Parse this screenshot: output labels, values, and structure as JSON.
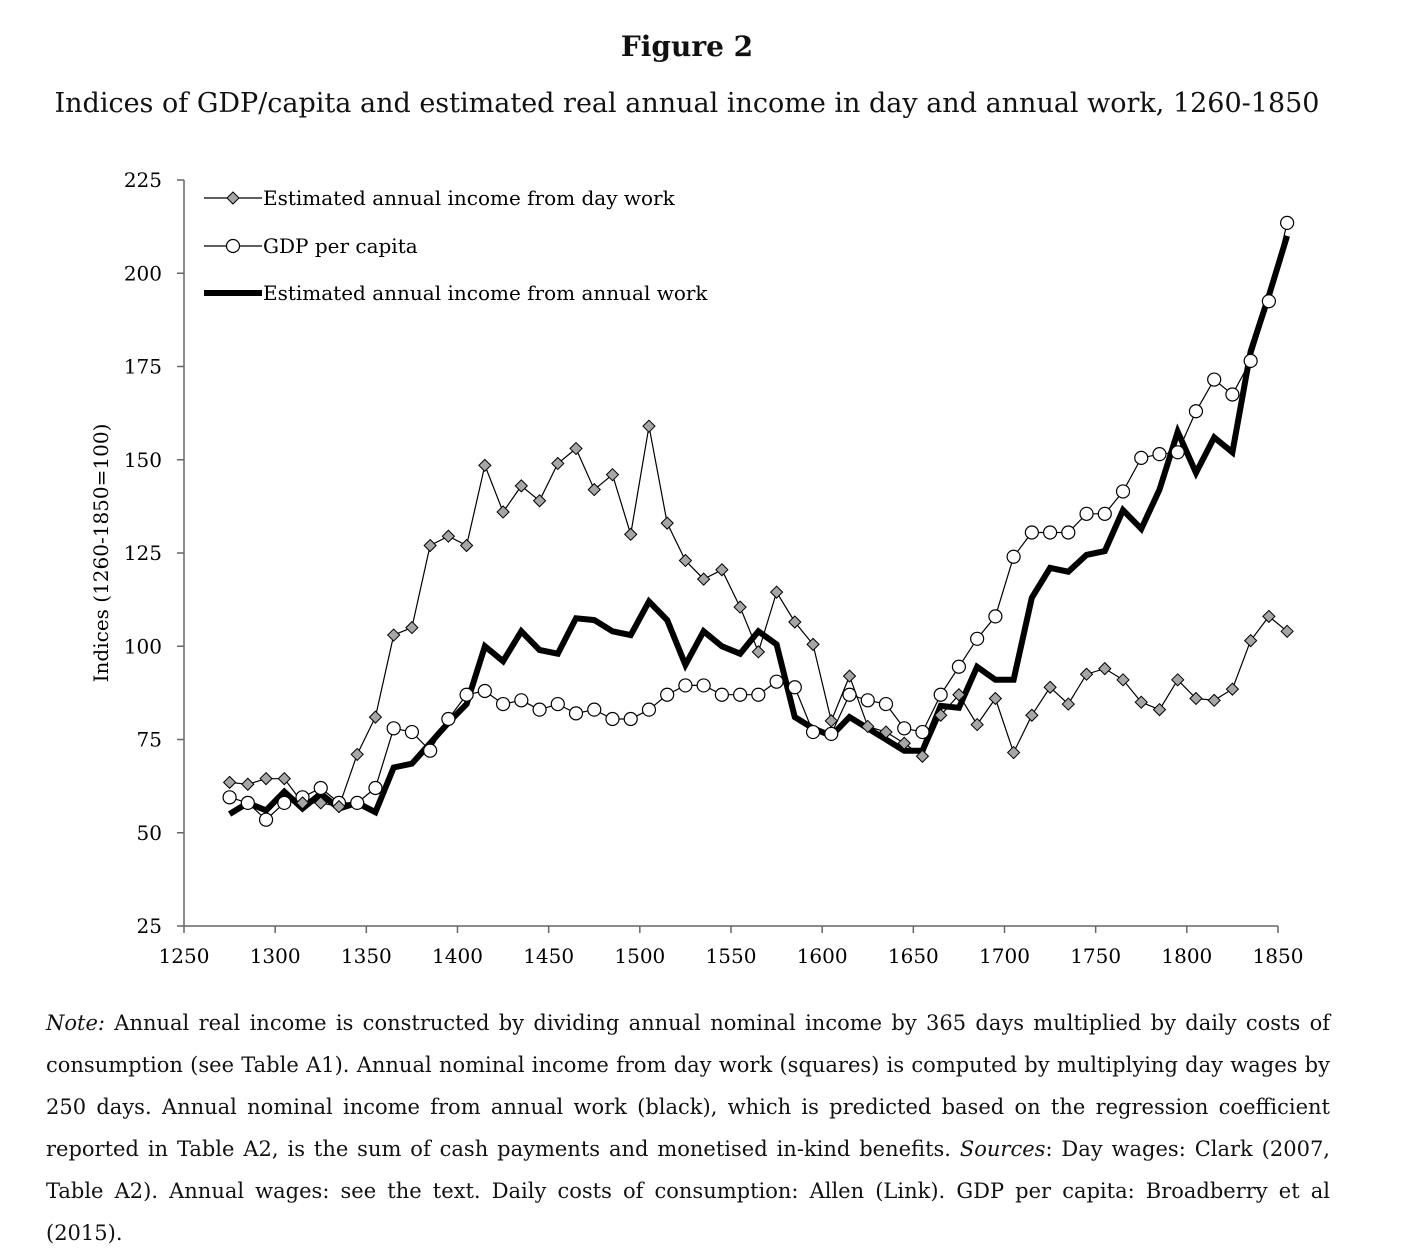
{
  "figure": {
    "label": "Figure 2",
    "title": "Indices of GDP/capita and estimated real annual income in day and annual work, 1260-1850"
  },
  "chart_data": {
    "type": "line",
    "title": "Indices of GDP/capita and estimated real annual income in day and annual work, 1260-1850",
    "xlabel": "",
    "ylabel": "Indices (1260-1850=100)",
    "xlim": [
      1250,
      1850
    ],
    "ylim": [
      25,
      225
    ],
    "xticks": [
      1250,
      1300,
      1350,
      1400,
      1450,
      1500,
      1550,
      1600,
      1650,
      1700,
      1750,
      1800,
      1850
    ],
    "yticks": [
      25,
      50,
      75,
      100,
      125,
      150,
      175,
      200,
      225
    ],
    "legend_position": "top-left",
    "grid": false,
    "x": [
      1275,
      1285,
      1295,
      1305,
      1315,
      1325,
      1335,
      1345,
      1355,
      1365,
      1375,
      1385,
      1395,
      1405,
      1415,
      1425,
      1435,
      1445,
      1455,
      1465,
      1475,
      1485,
      1495,
      1505,
      1515,
      1525,
      1535,
      1545,
      1555,
      1565,
      1575,
      1585,
      1595,
      1605,
      1615,
      1625,
      1635,
      1645,
      1655,
      1665,
      1675,
      1685,
      1695,
      1705,
      1715,
      1725,
      1735,
      1745,
      1755,
      1765,
      1775,
      1785,
      1795,
      1805,
      1815,
      1825,
      1835,
      1845,
      1855
    ],
    "series": [
      {
        "name": "Estimated annual income from day work",
        "marker": "diamond",
        "values": [
          63.5,
          63,
          64.5,
          64.5,
          58,
          58,
          57,
          71,
          81,
          103,
          105,
          127,
          129.5,
          127,
          148.5,
          136,
          143,
          139,
          149,
          153,
          142,
          146,
          130,
          159,
          133,
          123,
          118,
          120.5,
          110.5,
          98.5,
          114.5,
          106.5,
          100.5,
          80,
          92,
          78.5,
          77,
          74,
          70.5,
          81.5,
          87,
          79,
          86,
          71.5,
          81.5,
          89,
          84.5,
          92.5,
          94,
          91,
          85,
          83,
          91,
          86,
          85.5,
          88.5,
          101.5,
          108,
          104
        ]
      },
      {
        "name": "GDP per capita",
        "marker": "circle",
        "values": [
          59.5,
          58,
          53.5,
          58,
          59.5,
          62,
          58,
          58,
          62,
          78,
          77,
          72,
          80.5,
          87,
          88,
          84.5,
          85.5,
          83,
          84.5,
          82,
          83,
          80.5,
          80.5,
          83,
          87,
          89.5,
          89.5,
          87,
          87,
          87,
          90.5,
          89,
          77,
          76.5,
          87,
          85.5,
          84.5,
          78,
          77,
          87,
          94.5,
          102,
          108,
          124,
          130.5,
          130.5,
          130.5,
          135.5,
          135.5,
          141.5,
          150.5,
          151.5,
          152,
          163,
          171.5,
          167.5,
          176.5,
          192.5,
          213.5
        ]
      },
      {
        "name": "Estimated annual income from annual work",
        "marker": "none",
        "values": [
          55,
          58,
          56,
          61,
          56.5,
          60.5,
          56.5,
          58,
          55.5,
          67.5,
          68.5,
          74,
          79.5,
          84.5,
          100,
          96,
          104,
          99,
          98,
          107.5,
          107,
          104,
          103,
          112,
          107,
          95,
          104,
          100,
          98,
          104,
          100.5,
          81,
          78,
          76,
          81,
          78,
          75,
          72,
          72,
          84,
          83.5,
          94.5,
          91,
          91,
          113,
          121,
          120,
          124.5,
          125.5,
          136.5,
          131.5,
          142,
          157.5,
          146.5,
          156,
          152,
          179,
          194,
          210
        ]
      }
    ]
  },
  "note": {
    "note_label": "Note:",
    "text1": " Annual real income is constructed by dividing annual nominal income by 365 days multiplied by daily costs of consumption (see Table A1). Annual nominal income from day work (squares) is computed by multiplying day wages by 250 days. Annual nominal income from annual work (black), which is predicted based on the regression coefficient reported in Table A2, is the sum of cash payments and monetised in-kind benefits. ",
    "sources_label": "Sources",
    "text2": ": Day wages: Clark (2007, Table A2). Annual wages: see the text. Daily costs of consumption: Allen (Link). GDP per capita: Broadberry et al (2015)."
  },
  "colors": {
    "axis": "#666666",
    "line": "#000000",
    "diamond_fill": "#a6a6a6",
    "circle_fill": "#ffffff"
  }
}
